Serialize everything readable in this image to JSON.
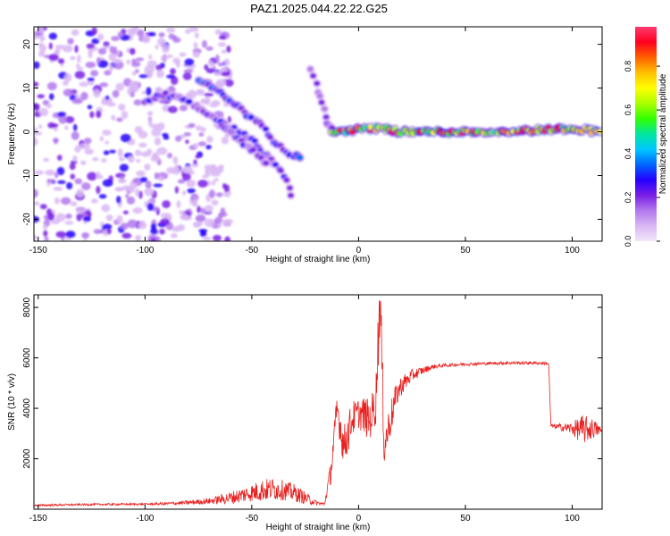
{
  "figure_title": "PAZ1.2025.044.22.22.G25",
  "chart_data": [
    {
      "type": "heatmap",
      "xlabel": "Height of straight line (km)",
      "ylabel": "Frequency (Hz)",
      "xlim": [
        -152,
        114
      ],
      "ylim": [
        -25,
        24
      ],
      "xticks": [
        -150,
        -100,
        -50,
        0,
        50,
        100
      ],
      "yticks": [
        -20,
        -10,
        0,
        10,
        20
      ],
      "colorbar": {
        "label": "Normalized spectral amplitude",
        "range": [
          0.0,
          0.98
        ],
        "ticks": [
          0.0,
          0.2,
          0.4,
          0.6,
          0.8
        ],
        "tick_labels": [
          "0.0",
          "0.2",
          "0.4",
          "0.6",
          "0.8"
        ],
        "colors": [
          "#f2e6fb",
          "#d9b7f4",
          "#b278ee",
          "#7a1fe6",
          "#2400ff",
          "#0066ff",
          "#00c8ff",
          "#00e6a0",
          "#33ff00",
          "#aaff00",
          "#ffff00",
          "#ffc000",
          "#ff6000",
          "#ff0020",
          "#ff3a6e"
        ]
      },
      "features": [
        {
          "kind": "scatter-noise",
          "x_range": [
            -152,
            -60
          ],
          "y_range": [
            -25,
            24
          ],
          "amplitude": [
            0.05,
            0.3
          ]
        },
        {
          "kind": "track",
          "points": [
            [
              -100,
              7
            ],
            [
              -90,
              8.5
            ],
            [
              -80,
              7
            ],
            [
              -70,
              4
            ],
            [
              -60,
              1
            ],
            [
              -50,
              -2
            ],
            [
              -42,
              -6
            ],
            [
              -35,
              -10
            ],
            [
              -30,
              -16
            ]
          ],
          "amplitude": 0.25
        },
        {
          "kind": "track",
          "points": [
            [
              -75,
              12
            ],
            [
              -68,
              10
            ],
            [
              -60,
              7
            ],
            [
              -52,
              4
            ],
            [
              -46,
              2
            ],
            [
              -40,
              -2
            ],
            [
              -33,
              -5
            ],
            [
              -26,
              -6
            ]
          ],
          "amplitude": 0.3
        },
        {
          "kind": "track",
          "points": [
            [
              -65,
              2
            ],
            [
              -58,
              -1
            ],
            [
              -50,
              -4
            ],
            [
              -42,
              -8
            ]
          ],
          "amplitude": 0.25
        },
        {
          "kind": "track",
          "points": [
            [
              -22,
              14
            ],
            [
              -18,
              8
            ],
            [
              -15,
              2
            ],
            [
              -12,
              0
            ]
          ],
          "amplitude": 0.2
        },
        {
          "kind": "track",
          "points": [
            [
              -12,
              0
            ],
            [
              0,
              0.5
            ],
            [
              10,
              1
            ],
            [
              20,
              0
            ],
            [
              40,
              0
            ],
            [
              60,
              0
            ],
            [
              80,
              0.3
            ],
            [
              100,
              0.8
            ],
            [
              114,
              0
            ]
          ],
          "amplitude": 0.8
        }
      ]
    },
    {
      "type": "line",
      "xlabel": "Height of straight line (km)",
      "ylabel": "SNR (10 * v/v)",
      "xlim": [
        -152,
        114
      ],
      "ylim": [
        0,
        8500
      ],
      "xticks": [
        -150,
        -100,
        -50,
        0,
        50,
        100
      ],
      "yticks": [
        2000,
        4000,
        6000,
        8000
      ],
      "color": "#e8201e",
      "x": [
        -152,
        -140,
        -120,
        -100,
        -90,
        -80,
        -70,
        -60,
        -55,
        -50,
        -45,
        -40,
        -35,
        -30,
        -25,
        -20,
        -16,
        -13,
        -10,
        -7,
        -5,
        -3,
        0,
        3,
        5,
        8,
        10,
        12,
        15,
        18,
        20,
        25,
        30,
        35,
        40,
        50,
        60,
        70,
        80,
        85,
        89,
        90,
        95,
        100,
        105,
        110,
        114
      ],
      "y": [
        150,
        170,
        190,
        200,
        220,
        260,
        320,
        450,
        550,
        650,
        750,
        800,
        750,
        650,
        450,
        250,
        200,
        1500,
        4000,
        2500,
        3000,
        3600,
        3800,
        3700,
        3500,
        4200,
        8500,
        2500,
        3600,
        4600,
        4900,
        5300,
        5500,
        5650,
        5700,
        5750,
        5780,
        5800,
        5800,
        5790,
        5780,
        3300,
        3250,
        3200,
        3150,
        3200,
        3100
      ],
      "noise_amplitude": [
        40,
        40,
        40,
        40,
        60,
        80,
        120,
        250,
        300,
        350,
        450,
        450,
        400,
        350,
        250,
        100,
        60,
        500,
        700,
        800,
        800,
        700,
        600,
        800,
        800,
        900,
        1500,
        900,
        700,
        500,
        400,
        250,
        150,
        90,
        70,
        60,
        60,
        60,
        60,
        60,
        60,
        80,
        150,
        250,
        600,
        400,
        120
      ]
    }
  ]
}
